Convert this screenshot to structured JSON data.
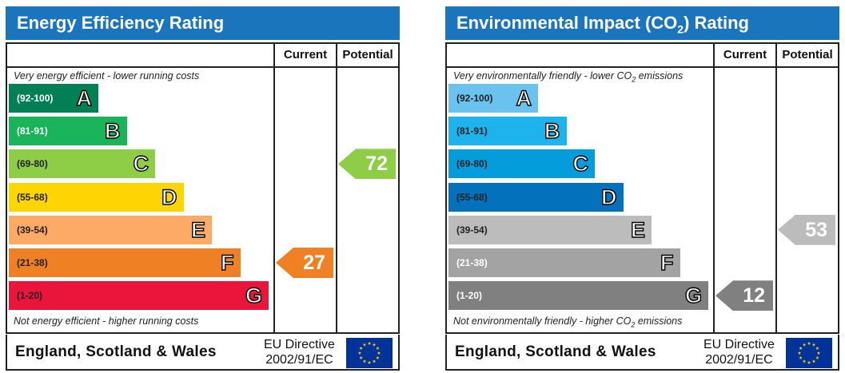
{
  "chart_data": [
    {
      "type": "bar",
      "title": "Energy Efficiency Rating",
      "columns": [
        "Current",
        "Potential"
      ],
      "top_note": "Very energy efficient - lower running costs",
      "bottom_note": "Not energy efficient - higher running costs",
      "bands": [
        {
          "letter": "A",
          "range": "(92-100)",
          "color": "#008054",
          "text_color": "#ffffff"
        },
        {
          "letter": "B",
          "range": "(81-91)",
          "color": "#19b459",
          "text_color": "#ffffff"
        },
        {
          "letter": "C",
          "range": "(69-80)",
          "color": "#8dce46",
          "text_color": "#222222"
        },
        {
          "letter": "D",
          "range": "(55-68)",
          "color": "#ffd500",
          "text_color": "#222222"
        },
        {
          "letter": "E",
          "range": "(39-54)",
          "color": "#fcaa65",
          "text_color": "#222222"
        },
        {
          "letter": "F",
          "range": "(21-38)",
          "color": "#ef8023",
          "text_color": "#222222"
        },
        {
          "letter": "G",
          "range": "(1-20)",
          "color": "#e9153b",
          "text_color": "#222222"
        }
      ],
      "current": {
        "value": 27,
        "band": "F",
        "color": "#ef8023"
      },
      "potential": {
        "value": 72,
        "band": "C",
        "color": "#8dce46"
      },
      "footer": {
        "country": "England, Scotland & Wales",
        "directive_line1": "EU Directive",
        "directive_line2": "2002/91/EC"
      }
    },
    {
      "type": "bar",
      "title_before": "Environmental Impact (CO",
      "title_sub": "2",
      "title_after": ") Rating",
      "columns": [
        "Current",
        "Potential"
      ],
      "top_note_before": "Very environmentally friendly - lower CO",
      "top_note_sub": "2",
      "top_note_after": " emissions",
      "bottom_note_before": "Not environmentally friendly - higher CO",
      "bottom_note_sub": "2",
      "bottom_note_after": " emissions",
      "bands": [
        {
          "letter": "A",
          "range": "(92-100)",
          "color": "#6ac3ee",
          "text_color": "#222222"
        },
        {
          "letter": "B",
          "range": "(81-91)",
          "color": "#1eb3ed",
          "text_color": "#222222"
        },
        {
          "letter": "C",
          "range": "(69-80)",
          "color": "#049cdb",
          "text_color": "#222222"
        },
        {
          "letter": "D",
          "range": "(55-68)",
          "color": "#0371bb",
          "text_color": "#222222"
        },
        {
          "letter": "E",
          "range": "(39-54)",
          "color": "#bcbcbc",
          "text_color": "#222222"
        },
        {
          "letter": "F",
          "range": "(21-38)",
          "color": "#a3a3a3",
          "text_color": "#ffffff"
        },
        {
          "letter": "G",
          "range": "(1-20)",
          "color": "#808080",
          "text_color": "#ffffff"
        }
      ],
      "current": {
        "value": 12,
        "band": "G",
        "color": "#808080"
      },
      "potential": {
        "value": 53,
        "band": "E",
        "color": "#bcbcbc"
      },
      "footer": {
        "country": "England, Scotland & Wales",
        "directive_line1": "EU Directive",
        "directive_line2": "2002/91/EC"
      }
    }
  ]
}
